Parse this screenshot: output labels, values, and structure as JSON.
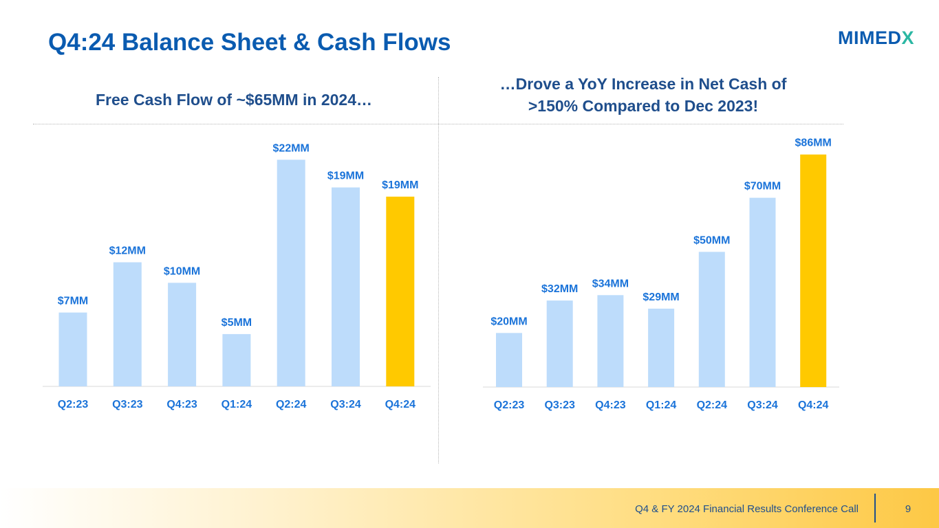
{
  "title": "Q4:24 Balance Sheet & Cash Flows",
  "logo": {
    "main": "MIMED",
    "accent": "X"
  },
  "colors": {
    "bar": "#bddcfb",
    "highlight": "#ffc900",
    "label": "#1a73d9",
    "axis": "#d9d9d9"
  },
  "left_heading": "Free Cash Flow of ~$65MM in 2024…",
  "right_heading": {
    "line1": "…Drove a YoY Increase in Net Cash of",
    "line2": ">150% Compared to Dec 2023!"
  },
  "chart_data": [
    {
      "type": "bar",
      "title": "Free Cash Flow of ~$65MM in 2024…",
      "categories": [
        "Q2:23",
        "Q3:23",
        "Q4:23",
        "Q1:24",
        "Q2:24",
        "Q3:24",
        "Q4:24"
      ],
      "values": [
        7,
        12,
        10,
        5,
        22,
        19,
        19
      ],
      "bar_values": [
        7.2,
        12.1,
        10.1,
        5.1,
        22.1,
        19.4,
        18.5
      ],
      "labels": [
        "$7MM",
        "$12MM",
        "$10MM",
        "$5MM",
        "$22MM",
        "$19MM",
        "$19MM"
      ],
      "unit": "$MM",
      "highlight_index": 6,
      "ylim": [
        0,
        24
      ],
      "xlabel": "",
      "ylabel": "",
      "grid": false
    },
    {
      "type": "bar",
      "title": "…Drove a YoY Increase in Net Cash of >150% Compared to Dec 2023!",
      "categories": [
        "Q2:23",
        "Q3:23",
        "Q4:23",
        "Q1:24",
        "Q2:24",
        "Q3:24",
        "Q4:24"
      ],
      "values": [
        20,
        32,
        34,
        29,
        50,
        70,
        86
      ],
      "bar_values": [
        20,
        32,
        34,
        29,
        50,
        70,
        86
      ],
      "labels": [
        "$20MM",
        "$32MM",
        "$34MM",
        "$29MM",
        "$50MM",
        "$70MM",
        "$86MM"
      ],
      "unit": "$MM",
      "highlight_index": 6,
      "ylim": [
        0,
        90
      ],
      "xlabel": "",
      "ylabel": "",
      "grid": false
    }
  ],
  "footer": {
    "text": "Q4 & FY 2024 Financial Results Conference Call",
    "page_number": "9"
  }
}
